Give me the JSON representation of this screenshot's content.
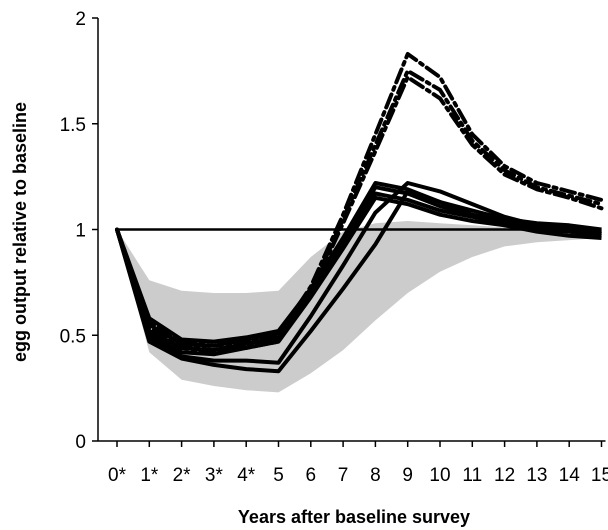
{
  "chart_data": {
    "type": "line",
    "title": "",
    "xlabel": "Years after baseline survey",
    "ylabel": "egg output relative to baseline",
    "x_categories": [
      "0*",
      "1*",
      "2*",
      "3*",
      "4*",
      "5",
      "6",
      "7",
      "8",
      "9",
      "10",
      "11",
      "12",
      "13",
      "14",
      "15"
    ],
    "ylim": [
      0,
      2
    ],
    "yticks": [
      0,
      0.5,
      1,
      1.5,
      2
    ],
    "ytick_labels": [
      "0",
      "0.5",
      "1",
      "1.5",
      "2"
    ],
    "grid": false,
    "legend": "none",
    "colors": {
      "band": "#cccccc",
      "lines": "#000000"
    },
    "band": {
      "lower": [
        1.0,
        0.42,
        0.29,
        0.26,
        0.24,
        0.23,
        0.32,
        0.43,
        0.57,
        0.7,
        0.8,
        0.87,
        0.92,
        0.94,
        0.95,
        0.96
      ],
      "upper": [
        1.0,
        0.76,
        0.71,
        0.7,
        0.7,
        0.71,
        0.87,
        0.99,
        1.03,
        1.04,
        1.03,
        1.02,
        1.01,
        1.0,
        1.0,
        1.0
      ]
    },
    "reference_line": {
      "y": 1.0,
      "x_from": 0,
      "x_to": 15
    },
    "series": [
      {
        "style": "solid",
        "values": [
          1.0,
          0.58,
          0.48,
          0.47,
          0.49,
          0.52,
          0.72,
          0.96,
          1.22,
          1.19,
          1.13,
          1.09,
          1.05,
          1.03,
          1.02,
          1.0
        ]
      },
      {
        "style": "solid",
        "values": [
          1.0,
          0.55,
          0.46,
          0.45,
          0.48,
          0.51,
          0.71,
          0.95,
          1.2,
          1.17,
          1.11,
          1.07,
          1.04,
          1.02,
          1.01,
          0.99
        ]
      },
      {
        "style": "solid",
        "values": [
          1.0,
          0.52,
          0.44,
          0.43,
          0.46,
          0.49,
          0.7,
          0.93,
          1.17,
          1.14,
          1.09,
          1.06,
          1.03,
          1.01,
          1.0,
          0.98
        ]
      },
      {
        "style": "solid",
        "values": [
          1.0,
          0.5,
          0.42,
          0.41,
          0.44,
          0.47,
          0.68,
          0.91,
          1.15,
          1.12,
          1.07,
          1.04,
          1.02,
          1.0,
          0.99,
          0.97
        ]
      },
      {
        "style": "solid",
        "values": [
          1.0,
          0.49,
          0.4,
          0.38,
          0.38,
          0.37,
          0.59,
          0.83,
          1.08,
          1.22,
          1.18,
          1.12,
          1.06,
          1.02,
          1.0,
          0.98
        ]
      },
      {
        "style": "solid",
        "values": [
          1.0,
          0.47,
          0.39,
          0.36,
          0.34,
          0.33,
          0.52,
          0.72,
          0.93,
          1.18,
          1.13,
          1.07,
          1.02,
          0.99,
          0.97,
          0.96
        ]
      },
      {
        "style": "dashdot",
        "values": [
          1.0,
          0.57,
          0.47,
          0.45,
          0.47,
          0.5,
          0.73,
          1.07,
          1.45,
          1.83,
          1.72,
          1.45,
          1.3,
          1.22,
          1.18,
          1.14
        ]
      },
      {
        "style": "dashdot",
        "values": [
          1.0,
          0.54,
          0.45,
          0.43,
          0.45,
          0.48,
          0.71,
          1.05,
          1.4,
          1.75,
          1.66,
          1.42,
          1.28,
          1.2,
          1.16,
          1.12
        ]
      },
      {
        "style": "dashdot",
        "values": [
          1.0,
          0.52,
          0.44,
          0.42,
          0.44,
          0.47,
          0.7,
          1.03,
          1.37,
          1.72,
          1.62,
          1.4,
          1.26,
          1.19,
          1.15,
          1.1
        ]
      }
    ]
  }
}
